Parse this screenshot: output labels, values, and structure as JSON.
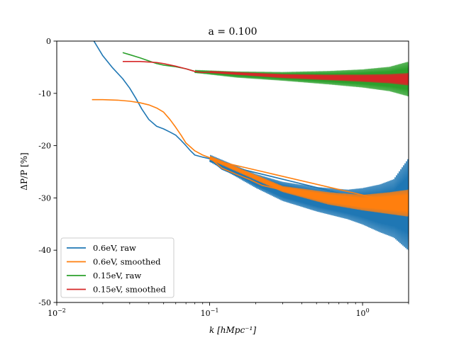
{
  "chart_data": {
    "type": "line",
    "title": "a = 0.100",
    "xlabel": "k [hMpc⁻¹]",
    "ylabel": "ΔP/P [%]",
    "xscale": "log",
    "xlim": [
      0.01,
      2.0
    ],
    "ylim": [
      -50,
      0
    ],
    "x_ticks": [
      {
        "value": 0.01,
        "base": "10",
        "exp": "−2"
      },
      {
        "value": 0.1,
        "base": "10",
        "exp": "−1"
      },
      {
        "value": 1.0,
        "base": "10",
        "exp": "0"
      }
    ],
    "y_ticks": [
      {
        "value": 0,
        "label": "0"
      },
      {
        "value": -10,
        "label": "-10"
      },
      {
        "value": -20,
        "label": "-20"
      },
      {
        "value": -30,
        "label": "-30"
      },
      {
        "value": -40,
        "label": "-40"
      },
      {
        "value": -50,
        "label": "-50"
      }
    ],
    "grid": false,
    "legend_position": "lower-left",
    "series": [
      {
        "name": "0.6eV, raw",
        "color": "#1f77b4",
        "x": [
          0.0175,
          0.02,
          0.023,
          0.027,
          0.03,
          0.033,
          0.036,
          0.04,
          0.045,
          0.05,
          0.055,
          0.06,
          0.065,
          0.07,
          0.075,
          0.08,
          0.09,
          0.1,
          0.12,
          0.15,
          0.18,
          0.22,
          0.28,
          0.35,
          0.45,
          0.6,
          0.8,
          1.0,
          1.3,
          1.6,
          2.0
        ],
        "values": [
          0.0,
          -2.8,
          -5.0,
          -7.2,
          -9.0,
          -11.0,
          -13.0,
          -15.0,
          -16.3,
          -16.8,
          -17.4,
          -18.0,
          -19.0,
          -20.0,
          -21.0,
          -21.8,
          -22.2,
          -22.5,
          -24.5,
          -25.7,
          -26.5,
          -27.7,
          -28.5,
          -29.0,
          -29.5,
          -30.3,
          -30.8,
          -31.0,
          -31.5,
          -31.8,
          -32.3
        ],
        "noise_envelope": {
          "x": [
            0.1,
            0.2,
            0.3,
            0.5,
            0.8,
            1.0,
            1.3,
            1.6,
            2.0
          ],
          "upper": [
            -21.8,
            -25.5,
            -27.0,
            -28.0,
            -28.5,
            -28.2,
            -27.5,
            -26.5,
            -22.5
          ],
          "lower": [
            -23.0,
            -28.0,
            -30.5,
            -32.5,
            -34.0,
            -35.0,
            -36.5,
            -37.5,
            -40.0
          ]
        }
      },
      {
        "name": "0.6eV, smoothed",
        "color": "#ff7f0e",
        "x": [
          0.017,
          0.02,
          0.025,
          0.03,
          0.035,
          0.04,
          0.045,
          0.05,
          0.055,
          0.06,
          0.065,
          0.07,
          0.08,
          0.09,
          0.1,
          0.12,
          0.15,
          0.18,
          0.22,
          0.28,
          0.35,
          0.45,
          0.6,
          0.8,
          1.0,
          1.3,
          1.6,
          2.0
        ],
        "values": [
          -11.2,
          -11.2,
          -11.3,
          -11.5,
          -11.8,
          -12.2,
          -12.8,
          -13.6,
          -15.0,
          -16.5,
          -18.0,
          -19.5,
          -21.0,
          -21.8,
          -22.3,
          -24.3,
          -25.5,
          -26.4,
          -27.6,
          -28.3,
          -28.8,
          -29.4,
          -30.1,
          -30.6,
          -30.9,
          -31.2,
          -31.4,
          -31.5
        ],
        "noise_envelope": {
          "x": [
            0.1,
            0.3,
            0.6,
            1.0,
            1.5,
            2.0
          ],
          "upper": [
            -22.0,
            -27.8,
            -29.0,
            -29.5,
            -29.0,
            -28.5
          ],
          "lower": [
            -22.6,
            -28.8,
            -31.2,
            -32.3,
            -33.0,
            -33.5
          ]
        }
      },
      {
        "name": "0.15eV, raw",
        "color": "#2ca02c",
        "x": [
          0.027,
          0.03,
          0.035,
          0.04,
          0.045,
          0.05,
          0.06,
          0.07,
          0.08,
          0.09,
          0.1,
          0.12,
          0.15,
          0.2,
          0.3,
          0.5,
          0.8,
          1.0,
          1.5,
          2.0
        ],
        "values": [
          -2.2,
          -2.6,
          -3.2,
          -3.8,
          -4.3,
          -4.6,
          -4.9,
          -5.3,
          -5.8,
          -6.0,
          -5.9,
          -6.1,
          -6.3,
          -6.5,
          -6.8,
          -7.0,
          -7.1,
          -7.1,
          -7.2,
          -7.3
        ],
        "noise_envelope": {
          "x": [
            0.08,
            0.15,
            0.3,
            0.6,
            1.0,
            1.5,
            2.0
          ],
          "upper": [
            -5.6,
            -5.9,
            -6.0,
            -5.8,
            -5.5,
            -5.0,
            -4.0
          ],
          "lower": [
            -6.0,
            -6.9,
            -7.5,
            -8.2,
            -8.8,
            -9.5,
            -10.5
          ]
        }
      },
      {
        "name": "0.15eV, smoothed",
        "color": "#d62728",
        "x": [
          0.027,
          0.03,
          0.035,
          0.04,
          0.045,
          0.05,
          0.06,
          0.07,
          0.08,
          0.09,
          0.1,
          0.12,
          0.15,
          0.2,
          0.3,
          0.5,
          0.8,
          1.0,
          1.5,
          2.0
        ],
        "values": [
          -3.9,
          -3.9,
          -3.9,
          -4.0,
          -4.1,
          -4.3,
          -4.8,
          -5.3,
          -5.8,
          -6.0,
          -5.9,
          -6.1,
          -6.3,
          -6.5,
          -6.7,
          -6.9,
          -7.0,
          -7.1,
          -7.2,
          -7.3
        ],
        "noise_envelope": {
          "x": [
            0.1,
            0.3,
            0.6,
            1.0,
            1.5,
            2.0
          ],
          "upper": [
            -5.8,
            -6.4,
            -6.5,
            -6.5,
            -6.4,
            -6.2
          ],
          "lower": [
            -6.0,
            -7.0,
            -7.4,
            -7.7,
            -8.0,
            -8.4
          ]
        }
      }
    ]
  }
}
